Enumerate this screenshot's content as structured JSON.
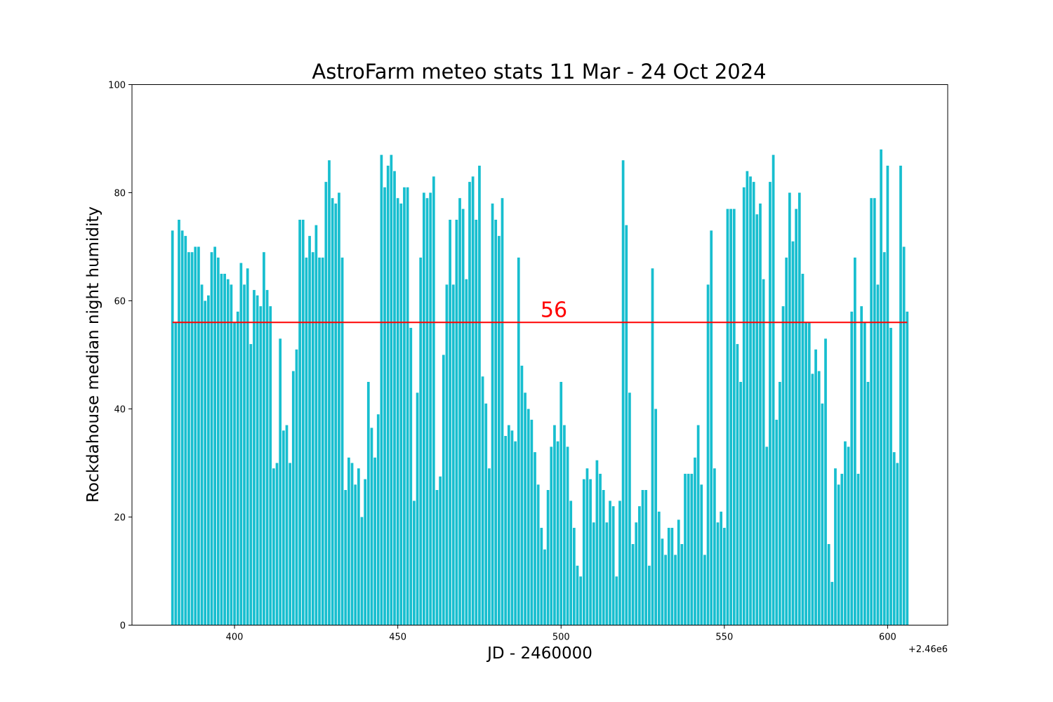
{
  "chart_data": {
    "type": "bar",
    "title": "AstroFarm meteo stats 11 Mar - 24 Oct 2024",
    "xlabel": "JD - 2460000",
    "ylabel": "Rockdahouse median night humidity",
    "x_offset_label": "+2.46e6",
    "xlim": [
      368.6,
      618.4
    ],
    "ylim": [
      0,
      100
    ],
    "x_ticks": [
      400,
      450,
      500,
      550,
      600
    ],
    "y_ticks": [
      0,
      20,
      40,
      60,
      80,
      100
    ],
    "x_start": 381,
    "bar_color": "#17becf",
    "median_line": {
      "value": 56,
      "label": "56",
      "color": "#ff0000"
    },
    "values": [
      73,
      56,
      75,
      73,
      72,
      69,
      69,
      70,
      70,
      63,
      60,
      61,
      69,
      70,
      68,
      65,
      65,
      64,
      63,
      56,
      58,
      67,
      63,
      66,
      52,
      62,
      61,
      59,
      69,
      62,
      59,
      29,
      30,
      53,
      36,
      37,
      30,
      47,
      51,
      75,
      75,
      68,
      72,
      69,
      74,
      68,
      68,
      82,
      86,
      79,
      78,
      80,
      68,
      25,
      31,
      30,
      26,
      29,
      20,
      27,
      45,
      36.5,
      31,
      39,
      87,
      81,
      85,
      87,
      84,
      79,
      78,
      81,
      81,
      55,
      23,
      43,
      68,
      80,
      79,
      80,
      83,
      25,
      27.5,
      50,
      63,
      75,
      63,
      75,
      79,
      77,
      64,
      82,
      83,
      75,
      85,
      46,
      41,
      29,
      78,
      75,
      72,
      79,
      35,
      37,
      36,
      34,
      68,
      48,
      43,
      40,
      38,
      32,
      26,
      18,
      14,
      25,
      33,
      37,
      34,
      45,
      37,
      33,
      23,
      18,
      11,
      9,
      27,
      29,
      27,
      19,
      30.5,
      28,
      25,
      19,
      23,
      22,
      9,
      23,
      86,
      74,
      43,
      15,
      19,
      22,
      25,
      25,
      11,
      66,
      40,
      21,
      16,
      13,
      18,
      18,
      13,
      19.5,
      15,
      28,
      28,
      28,
      31,
      37,
      26,
      13,
      63,
      73,
      29,
      19,
      21,
      18,
      77,
      77,
      77,
      52,
      45,
      81,
      84,
      83,
      82,
      76,
      78,
      64,
      33,
      82,
      87,
      38,
      45,
      59,
      68,
      80,
      71,
      77,
      80,
      65,
      56,
      56,
      46.5,
      51,
      47,
      41,
      53,
      15,
      8,
      29,
      26,
      28,
      34,
      33,
      58,
      68,
      28,
      59,
      56,
      45,
      79,
      79,
      63,
      88,
      69,
      85,
      55,
      32,
      30,
      85,
      70,
      58
    ]
  }
}
